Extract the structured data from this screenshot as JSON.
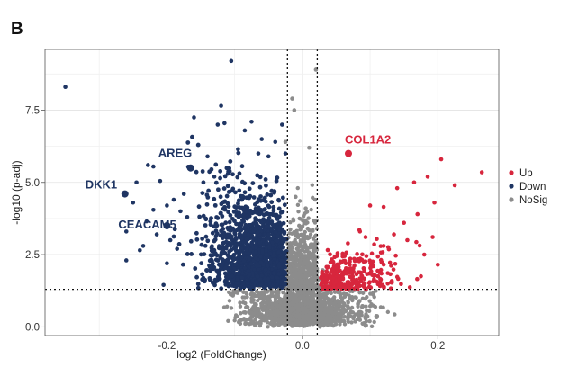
{
  "panel_label": "B",
  "chart_data": {
    "type": "scatter",
    "title": "",
    "xlabel": "log2 (FoldChange)",
    "ylabel": "-log10 (p-adj)",
    "xlim": [
      -0.38,
      0.29
    ],
    "ylim": [
      -0.3,
      9.6
    ],
    "x_ticks": [
      -0.2,
      0.0,
      0.2
    ],
    "x_tick_labels": [
      "-0.2",
      "0.0",
      "0.2"
    ],
    "y_ticks": [
      0.0,
      2.5,
      5.0,
      7.5
    ],
    "y_tick_labels": [
      "0.0",
      "2.5",
      "5.0",
      "7.5"
    ],
    "grid": true,
    "thresholds": {
      "x": [
        -0.022,
        0.022
      ],
      "y": 1.3
    },
    "legend": {
      "placement": "right",
      "entries": [
        {
          "name": "Up",
          "color": "#d7263d"
        },
        {
          "name": "Down",
          "color": "#1f3563"
        },
        {
          "name": "NoSig",
          "color": "#8c8c8c"
        }
      ]
    },
    "colors": {
      "Up": "#d7263d",
      "Down": "#1f3563",
      "NoSig": "#8c8c8c"
    },
    "highlighted_genes": [
      {
        "name": "COL1A2",
        "x": 0.068,
        "y": 6.0,
        "group": "Up"
      },
      {
        "name": "AREG",
        "x": -0.165,
        "y": 5.5,
        "group": "Down"
      },
      {
        "name": "DKK1",
        "x": -0.262,
        "y": 4.6,
        "group": "Down"
      },
      {
        "name": "CEACAM5",
        "x": -0.2,
        "y": 3.5,
        "group": "Down"
      }
    ],
    "series": [
      {
        "name": "Down",
        "points": [
          [
            -0.35,
            8.3
          ],
          [
            -0.105,
            9.2
          ],
          [
            -0.12,
            7.65
          ],
          [
            -0.115,
            7.05
          ],
          [
            -0.125,
            7.0
          ],
          [
            -0.16,
            7.25
          ],
          [
            -0.095,
            6.15
          ],
          [
            -0.14,
            5.9
          ],
          [
            -0.228,
            5.6
          ],
          [
            -0.22,
            5.55
          ],
          [
            -0.21,
            5.05
          ],
          [
            -0.245,
            5.0
          ],
          [
            -0.25,
            4.3
          ],
          [
            -0.23,
            3.65
          ],
          [
            -0.235,
            2.8
          ],
          [
            -0.24,
            2.65
          ],
          [
            -0.26,
            3.3
          ],
          [
            -0.26,
            2.3
          ],
          [
            -0.2,
            2.2
          ],
          [
            -0.205,
            1.45
          ],
          [
            -0.22,
            4.05
          ],
          [
            -0.19,
            4.4
          ],
          [
            -0.175,
            4.6
          ],
          [
            -0.2,
            4.2
          ],
          [
            -0.18,
            4.0
          ],
          [
            -0.17,
            3.8
          ],
          [
            -0.215,
            3.2
          ],
          [
            -0.195,
            3.0
          ],
          [
            -0.185,
            2.7
          ],
          [
            -0.075,
            7.1
          ],
          [
            -0.06,
            6.5
          ],
          [
            -0.085,
            6.8
          ],
          [
            -0.05,
            5.9
          ],
          [
            -0.03,
            7.0
          ],
          [
            -0.025,
            6.0
          ],
          [
            -0.04,
            6.4
          ],
          [
            -0.065,
            6.0
          ],
          [
            -0.11,
            5.3
          ],
          [
            -0.13,
            5.2
          ]
        ]
      },
      {
        "name": "Up",
        "points": [
          [
            0.265,
            5.35
          ],
          [
            0.205,
            5.8
          ],
          [
            0.185,
            5.2
          ],
          [
            0.165,
            5.0
          ],
          [
            0.225,
            4.9
          ],
          [
            0.195,
            4.3
          ],
          [
            0.14,
            4.8
          ],
          [
            0.17,
            3.9
          ],
          [
            0.15,
            3.6
          ],
          [
            0.12,
            4.15
          ],
          [
            0.1,
            4.2
          ],
          [
            0.085,
            3.3
          ],
          [
            0.155,
            3.0
          ],
          [
            0.18,
            2.5
          ],
          [
            0.2,
            2.15
          ],
          [
            0.175,
            1.75
          ],
          [
            0.12,
            2.8
          ],
          [
            0.05,
            2.1
          ]
        ]
      },
      {
        "name": "NoSig",
        "points": [
          [
            -0.015,
            7.9
          ],
          [
            0.02,
            8.9
          ],
          [
            -0.012,
            7.5
          ],
          [
            -0.025,
            6.4
          ],
          [
            0.01,
            6.2
          ],
          [
            0.015,
            3.35
          ],
          [
            -0.01,
            4.5
          ],
          [
            0.005,
            4.1
          ]
        ]
      }
    ]
  }
}
